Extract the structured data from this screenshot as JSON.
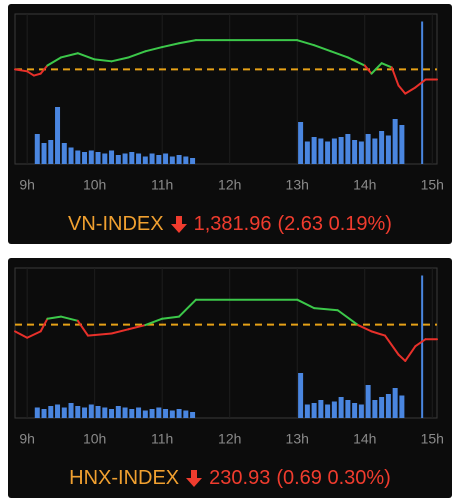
{
  "chart_data": [
    {
      "type": "line",
      "title": "VN-INDEX",
      "close_label": "1,381.96",
      "change_label": "(2.63 0.19%)",
      "xlim": [
        8.82,
        15.07
      ],
      "xticks": [
        {
          "value": 9,
          "label": "9h"
        },
        {
          "value": 10,
          "label": "10h"
        },
        {
          "value": 11,
          "label": "11h"
        },
        {
          "value": 12,
          "label": "12h"
        },
        {
          "value": 13,
          "label": "13h"
        },
        {
          "value": 14,
          "label": "14h"
        },
        {
          "value": 15,
          "label": "15h"
        }
      ],
      "ylim": [
        1360,
        1399
      ],
      "y2lim": [
        0,
        100
      ],
      "grid": true,
      "reference": {
        "value": 1384.59,
        "color": "#e6a117"
      },
      "price": {
        "up_color": "#3cc84a",
        "down_color": "#e8302a",
        "x": [
          8.82,
          9.0,
          9.1,
          9.2,
          9.3,
          9.5,
          9.75,
          10.0,
          10.25,
          10.5,
          10.75,
          11.0,
          11.25,
          11.5,
          13.0,
          13.25,
          13.5,
          13.75,
          14.0,
          14.1,
          14.25,
          14.4,
          14.5,
          14.6,
          14.75,
          14.9,
          15.07
        ],
        "values": [
          1384.6,
          1384.1,
          1383.0,
          1383.5,
          1385.6,
          1387.7,
          1388.8,
          1387.2,
          1386.7,
          1387.7,
          1389.3,
          1390.4,
          1391.4,
          1392.2,
          1392.2,
          1390.9,
          1389.3,
          1387.7,
          1385.6,
          1383.5,
          1386.2,
          1385.1,
          1380.4,
          1378.3,
          1379.9,
          1381.96,
          1381.96
        ]
      },
      "volume": {
        "color": "#4a86e0",
        "x": [
          9.15,
          9.25,
          9.35,
          9.45,
          9.55,
          9.65,
          9.75,
          9.85,
          9.95,
          10.05,
          10.15,
          10.25,
          10.35,
          10.45,
          10.55,
          10.65,
          10.75,
          10.85,
          10.95,
          11.05,
          11.15,
          11.25,
          11.35,
          11.45,
          13.05,
          13.15,
          13.25,
          13.35,
          13.45,
          13.55,
          13.65,
          13.75,
          13.85,
          13.95,
          14.05,
          14.15,
          14.25,
          14.35,
          14.45,
          14.55,
          14.85
        ],
        "values": [
          20,
          14,
          16,
          38,
          14,
          11,
          9,
          8,
          9,
          8,
          7,
          9,
          6,
          7,
          8,
          7,
          5,
          7,
          6,
          7,
          5,
          6,
          5,
          4,
          28,
          15,
          18,
          17,
          15,
          17,
          18,
          20,
          16,
          15,
          20,
          17,
          22,
          19,
          30,
          26,
          95
        ]
      }
    },
    {
      "type": "line",
      "title": "HNX-INDEX",
      "close_label": "230.93",
      "change_label": "(0.69 0.30%)",
      "xlim": [
        8.82,
        15.07
      ],
      "xticks": [
        {
          "value": 9,
          "label": "9h"
        },
        {
          "value": 10,
          "label": "10h"
        },
        {
          "value": 11,
          "label": "11h"
        },
        {
          "value": 12,
          "label": "12h"
        },
        {
          "value": 13,
          "label": "13h"
        },
        {
          "value": 14,
          "label": "14h"
        },
        {
          "value": 15,
          "label": "15h"
        }
      ],
      "ylim": [
        227.2,
        234.3
      ],
      "y2lim": [
        0,
        100
      ],
      "grid": true,
      "reference": {
        "value": 231.62,
        "color": "#e6a117"
      },
      "price": {
        "up_color": "#3cc84a",
        "down_color": "#e8302a",
        "x": [
          8.82,
          9.0,
          9.2,
          9.3,
          9.5,
          9.75,
          9.9,
          10.25,
          10.5,
          10.75,
          11.0,
          11.25,
          11.5,
          13.0,
          13.25,
          13.6,
          13.9,
          14.1,
          14.3,
          14.5,
          14.6,
          14.75,
          14.9,
          15.07
        ],
        "values": [
          231.3,
          231.0,
          231.3,
          231.9,
          232.0,
          231.8,
          231.1,
          231.2,
          231.4,
          231.6,
          231.9,
          232.0,
          232.8,
          232.8,
          232.4,
          232.3,
          231.6,
          231.3,
          231.1,
          230.2,
          229.9,
          230.6,
          230.93,
          230.93
        ]
      },
      "volume": {
        "color": "#4a86e0",
        "x": [
          9.15,
          9.25,
          9.35,
          9.45,
          9.55,
          9.65,
          9.75,
          9.85,
          9.95,
          10.05,
          10.15,
          10.25,
          10.35,
          10.45,
          10.55,
          10.65,
          10.75,
          10.85,
          10.95,
          11.05,
          11.15,
          11.25,
          11.35,
          11.45,
          13.05,
          13.15,
          13.25,
          13.35,
          13.45,
          13.55,
          13.65,
          13.75,
          13.85,
          13.95,
          14.05,
          14.15,
          14.25,
          14.35,
          14.45,
          14.55,
          14.85
        ],
        "values": [
          7,
          6,
          8,
          9,
          7,
          10,
          8,
          7,
          9,
          8,
          7,
          6,
          8,
          7,
          6,
          7,
          5,
          6,
          7,
          6,
          5,
          6,
          5,
          4,
          30,
          9,
          10,
          12,
          9,
          11,
          14,
          12,
          10,
          9,
          22,
          12,
          14,
          16,
          20,
          15,
          95
        ]
      }
    }
  ]
}
